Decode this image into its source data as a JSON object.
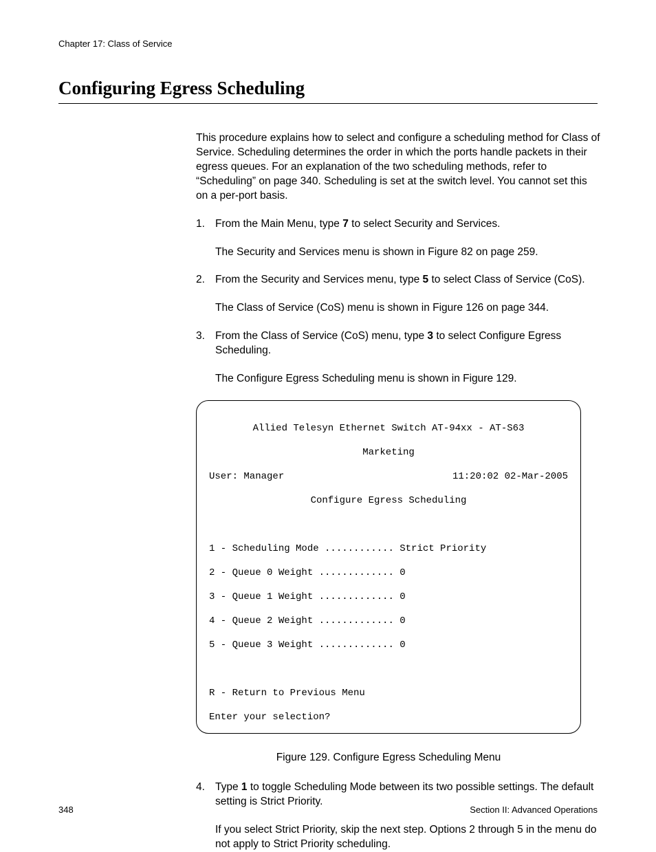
{
  "header": {
    "chapter": "Chapter 17: Class of Service"
  },
  "section": {
    "title": "Configuring Egress Scheduling"
  },
  "intro": {
    "p1": "This procedure explains how to select and configure a scheduling method for Class of Service. Scheduling determines the order in which the ports handle packets in their egress queues. For an explanation of the two scheduling methods, refer to “Scheduling” on page 340. Scheduling is set at the switch level. You cannot set this on a per-port basis."
  },
  "steps": {
    "s1_num": "1.",
    "s1_a": "From the Main Menu, type ",
    "s1_b": "7",
    "s1_c": " to select Security and Services.",
    "s1_sub": "The Security and Services menu is shown in Figure 82 on page 259.",
    "s2_num": "2.",
    "s2_a": "From the Security and Services menu, type ",
    "s2_b": "5",
    "s2_c": " to select Class of Service (CoS).",
    "s2_sub": "The Class of Service (CoS) menu is shown in Figure 126 on page 344.",
    "s3_num": "3.",
    "s3_a": "From the Class of Service (CoS) menu, type ",
    "s3_b": "3",
    "s3_c": " to select Configure Egress Scheduling.",
    "s3_sub": "The Configure Egress Scheduling menu is shown in Figure 129.",
    "s4_num": "4.",
    "s4_a": "Type ",
    "s4_b": "1",
    "s4_c": " to toggle Scheduling Mode between its two possible settings. The default setting is Strict Priority.",
    "s4_sub": "If you select Strict Priority, skip the next step. Options 2 through 5 in the menu do not apply to Strict Priority scheduling."
  },
  "terminal": {
    "title": "Allied Telesyn Ethernet Switch AT-94xx - AT-S63",
    "subtitle": "Marketing",
    "user": "User: Manager",
    "datetime": "11:20:02 02-Mar-2005",
    "menu_title": "Configure Egress Scheduling",
    "opt1": "1 - Scheduling Mode ............ Strict Priority",
    "opt2": "2 - Queue 0 Weight ............. 0",
    "opt3": "3 - Queue 1 Weight ............. 0",
    "opt4": "4 - Queue 2 Weight ............. 0",
    "opt5": "5 - Queue 3 Weight ............. 0",
    "optR": "R - Return to Previous Menu",
    "prompt": "Enter your selection?"
  },
  "figure": {
    "caption": "Figure 129. Configure Egress Scheduling Menu"
  },
  "footer": {
    "page_num": "348",
    "section": "Section II: Advanced Operations"
  }
}
